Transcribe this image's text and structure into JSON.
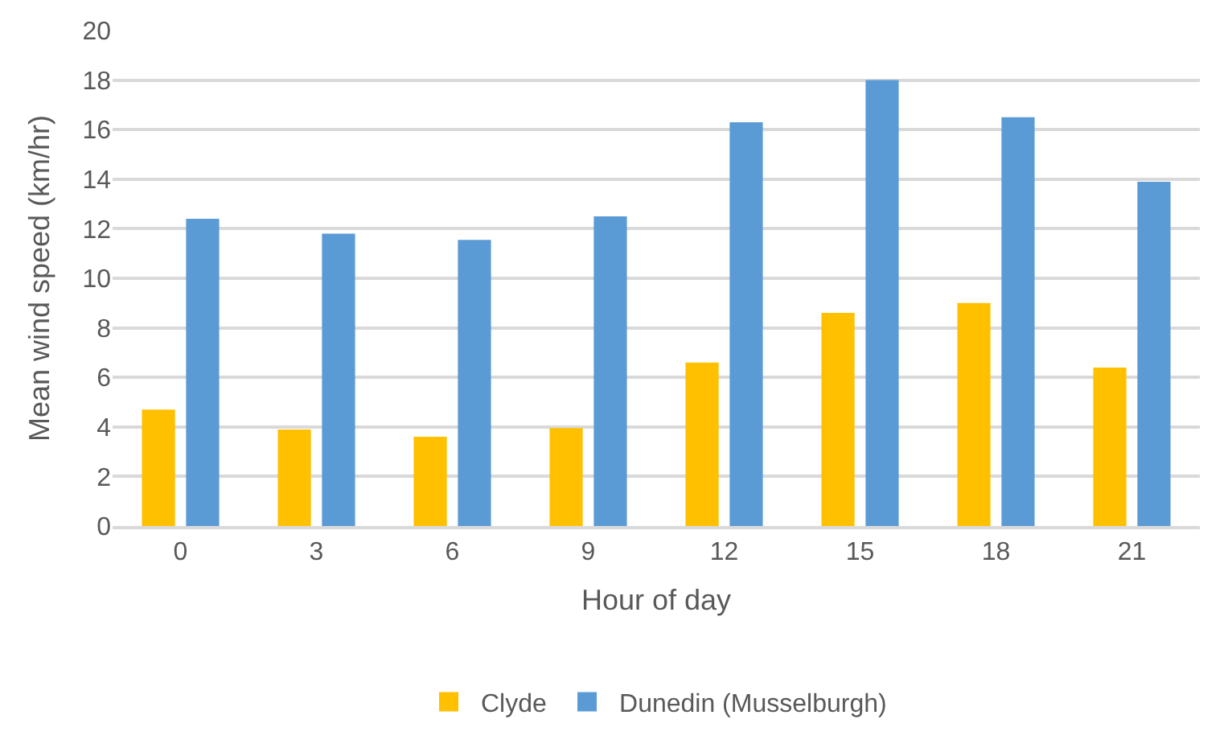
{
  "chart_data": {
    "type": "bar",
    "xlabel": "Hour of day",
    "ylabel": "Mean wind speed (km/hr)",
    "categories": [
      "0",
      "3",
      "6",
      "9",
      "12",
      "15",
      "18",
      "21"
    ],
    "series": [
      {
        "name": "Clyde",
        "color": "#ffc000",
        "values": [
          4.7,
          3.9,
          3.6,
          3.95,
          6.6,
          8.6,
          9.0,
          6.4
        ]
      },
      {
        "name": "Dunedin (Musselburgh)",
        "color": "#5b9bd5",
        "values": [
          12.4,
          11.8,
          11.55,
          12.5,
          16.3,
          18.0,
          16.5,
          13.9
        ]
      }
    ],
    "ylim": [
      0,
      20
    ],
    "yticks": [
      0,
      2,
      4,
      6,
      8,
      10,
      12,
      14,
      16,
      18,
      20
    ],
    "grid": "y",
    "legend": "bottom"
  }
}
